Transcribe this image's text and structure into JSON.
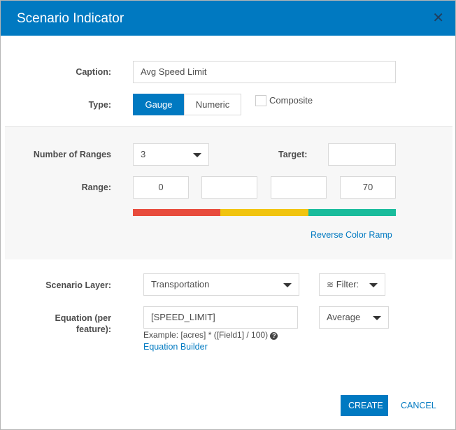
{
  "dialog": {
    "title": "Scenario Indicator",
    "close_icon": "close-icon"
  },
  "caption": {
    "label": "Caption:",
    "value": "Avg Speed Limit"
  },
  "type": {
    "label": "Type:",
    "options": [
      "Gauge",
      "Numeric"
    ],
    "selected": "Gauge",
    "composite_label": "Composite",
    "composite_checked": false
  },
  "ranges": {
    "label": "Number of Ranges",
    "value": "3",
    "target_label": "Target:",
    "target_value": "",
    "range_label": "Range:",
    "range_values": [
      "0",
      "",
      "",
      "70"
    ],
    "colors": [
      "#e84c3d",
      "#f1c40f",
      "#1abc9c"
    ],
    "reverse_label": "Reverse Color Ramp"
  },
  "layer": {
    "label": "Scenario Layer:",
    "value": "Transportation",
    "filter_label": "Filter:"
  },
  "equation": {
    "label": "Equation (per feature):",
    "value": "[SPEED_LIMIT]",
    "example": "Example: [acres] * ([Field1] / 100)",
    "builder_label": "Equation Builder",
    "aggregate": "Average"
  },
  "actions": {
    "create": "CREATE",
    "cancel": "CANCEL"
  },
  "colors": {
    "accent": "#0079c1"
  }
}
